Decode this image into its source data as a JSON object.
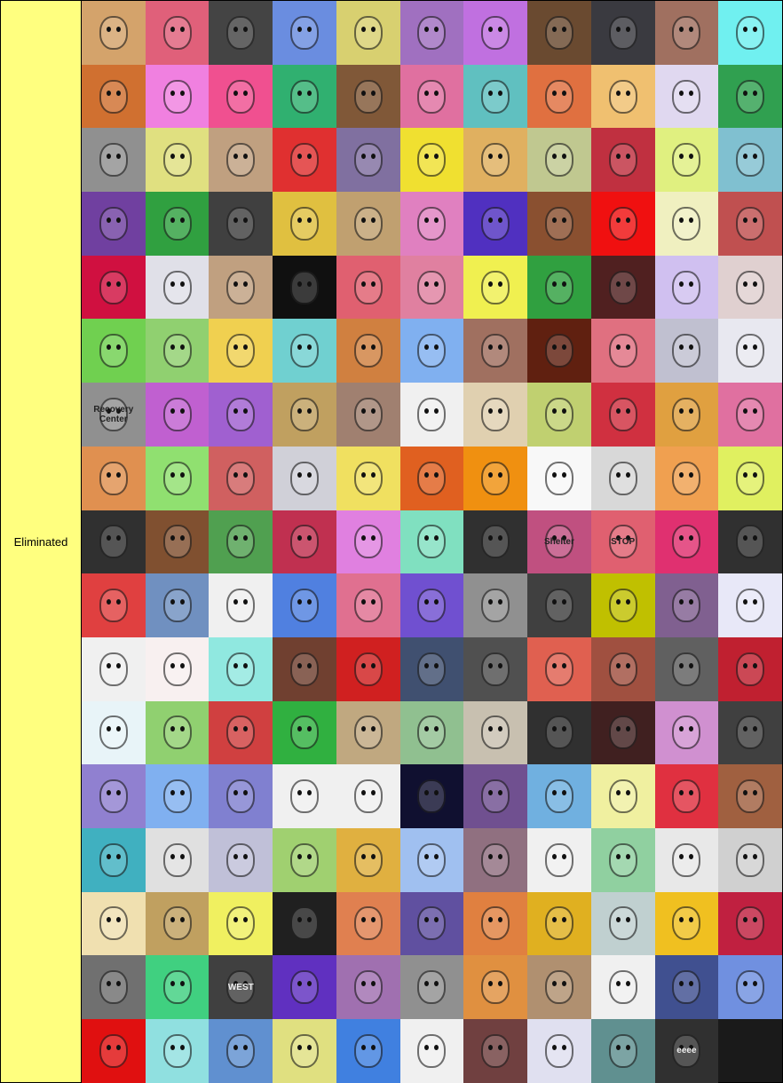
{
  "tier": {
    "label": "Eliminated",
    "color": "#ffff7f"
  },
  "items": [
    {
      "bg": "#d4a36b"
    },
    {
      "bg": "#e0607a"
    },
    {
      "bg": "#444444"
    },
    {
      "bg": "#6a8de0"
    },
    {
      "bg": "#d8d070"
    },
    {
      "bg": "#a070c0"
    },
    {
      "bg": "#c070e0"
    },
    {
      "bg": "#6a4a30"
    },
    {
      "bg": "#3a3a40"
    },
    {
      "bg": "#a07060"
    },
    {
      "bg": "#70f0f0"
    },
    {
      "bg": "#d07030"
    },
    {
      "bg": "#f080e0"
    },
    {
      "bg": "#f05090"
    },
    {
      "bg": "#30b070"
    },
    {
      "bg": "#805838"
    },
    {
      "bg": "#e070a0"
    },
    {
      "bg": "#60c0c0"
    },
    {
      "bg": "#e07040"
    },
    {
      "bg": "#f0c070"
    },
    {
      "bg": "#e0d8f0"
    },
    {
      "bg": "#30a050"
    },
    {
      "bg": "#909090"
    },
    {
      "bg": "#e0e080"
    },
    {
      "bg": "#c0a080"
    },
    {
      "bg": "#e03030"
    },
    {
      "bg": "#8070a0"
    },
    {
      "bg": "#f0e030"
    },
    {
      "bg": "#e0b060"
    },
    {
      "bg": "#c0c890"
    },
    {
      "bg": "#c03040"
    },
    {
      "bg": "#e0f080"
    },
    {
      "bg": "#80c0d0"
    },
    {
      "bg": "#7040a0"
    },
    {
      "bg": "#30a040"
    },
    {
      "bg": "#404040"
    },
    {
      "bg": "#e0c040"
    },
    {
      "bg": "#c0a070"
    },
    {
      "bg": "#e080c0"
    },
    {
      "bg": "#5030c0"
    },
    {
      "bg": "#8a5030"
    },
    {
      "bg": "#f01010"
    },
    {
      "bg": "#f0f0c0"
    },
    {
      "bg": "#c05050"
    },
    {
      "bg": "#d01040"
    },
    {
      "bg": "#e0e0e8"
    },
    {
      "bg": "#c0a080"
    },
    {
      "bg": "#101010"
    },
    {
      "bg": "#e06070"
    },
    {
      "bg": "#e080a0"
    },
    {
      "bg": "#f0f050"
    },
    {
      "bg": "#30a040"
    },
    {
      "bg": "#502020"
    },
    {
      "bg": "#d0c0f0"
    },
    {
      "bg": "#e0d0d0"
    },
    {
      "bg": "#70d050"
    },
    {
      "bg": "#90d070"
    },
    {
      "bg": "#f0d050"
    },
    {
      "bg": "#70d0d0"
    },
    {
      "bg": "#d08040"
    },
    {
      "bg": "#80b0f0"
    },
    {
      "bg": "#a07060"
    },
    {
      "bg": "#602010"
    },
    {
      "bg": "#e07080"
    },
    {
      "bg": "#c0c0d0"
    },
    {
      "bg": "#e8e8f0"
    },
    {
      "bg": "#909090",
      "text": "Recovery Center"
    },
    {
      "bg": "#c060d0"
    },
    {
      "bg": "#a060d0"
    },
    {
      "bg": "#c0a060"
    },
    {
      "bg": "#a08070"
    },
    {
      "bg": "#f0f0f0"
    },
    {
      "bg": "#e0d0b0"
    },
    {
      "bg": "#c0d070"
    },
    {
      "bg": "#d03040"
    },
    {
      "bg": "#e0a040"
    },
    {
      "bg": "#e070a0"
    },
    {
      "bg": "#e09050"
    },
    {
      "bg": "#90e070"
    },
    {
      "bg": "#d06060"
    },
    {
      "bg": "#d0d0d8"
    },
    {
      "bg": "#f0e060"
    },
    {
      "bg": "#e06020"
    },
    {
      "bg": "#f09010"
    },
    {
      "bg": "#f8f8f8"
    },
    {
      "bg": "#d8d8d8"
    },
    {
      "bg": "#f0a050"
    },
    {
      "bg": "#e0f060"
    },
    {
      "bg": "#303030"
    },
    {
      "bg": "#805030"
    },
    {
      "bg": "#50a050"
    },
    {
      "bg": "#c03050"
    },
    {
      "bg": "#e080e0"
    },
    {
      "bg": "#80e0c0"
    },
    {
      "bg": "#303030"
    },
    {
      "bg": "#c05080",
      "text": "Shelter"
    },
    {
      "bg": "#e06070",
      "text": "STOP"
    },
    {
      "bg": "#e03070"
    },
    {
      "bg": "#303030"
    },
    {
      "bg": "#e04040"
    },
    {
      "bg": "#7090c0"
    },
    {
      "bg": "#f0f0f0"
    },
    {
      "bg": "#5080e0"
    },
    {
      "bg": "#e07090"
    },
    {
      "bg": "#7050d0"
    },
    {
      "bg": "#909090"
    },
    {
      "bg": "#404040"
    },
    {
      "bg": "#c0c000"
    },
    {
      "bg": "#806090"
    },
    {
      "bg": "#e8e8f8"
    },
    {
      "bg": "#f0f0f0"
    },
    {
      "bg": "#f8f0f0"
    },
    {
      "bg": "#90e8e0"
    },
    {
      "bg": "#704030"
    },
    {
      "bg": "#d02020"
    },
    {
      "bg": "#405070"
    },
    {
      "bg": "#505050"
    },
    {
      "bg": "#e06050"
    },
    {
      "bg": "#a05040"
    },
    {
      "bg": "#606060"
    },
    {
      "bg": "#c02030"
    },
    {
      "bg": "#e8f4f8"
    },
    {
      "bg": "#90d070"
    },
    {
      "bg": "#d04040"
    },
    {
      "bg": "#30b040"
    },
    {
      "bg": "#c0a880"
    },
    {
      "bg": "#90c090"
    },
    {
      "bg": "#c8c0b0"
    },
    {
      "bg": "#303030"
    },
    {
      "bg": "#402020"
    },
    {
      "bg": "#d090d0"
    },
    {
      "bg": "#404040"
    },
    {
      "bg": "#9080d0"
    },
    {
      "bg": "#80b0f0"
    },
    {
      "bg": "#8080d0"
    },
    {
      "bg": "#f0f0f0"
    },
    {
      "bg": "#f0f0f0"
    },
    {
      "bg": "#101030"
    },
    {
      "bg": "#705090"
    },
    {
      "bg": "#70b0e0"
    },
    {
      "bg": "#f0f0a0"
    },
    {
      "bg": "#e03040"
    },
    {
      "bg": "#a06040"
    },
    {
      "bg": "#40b0c0"
    },
    {
      "bg": "#e0e0e0"
    },
    {
      "bg": "#c0c0d8"
    },
    {
      "bg": "#a0d070"
    },
    {
      "bg": "#e0b040"
    },
    {
      "bg": "#a0c0f0"
    },
    {
      "bg": "#907080"
    },
    {
      "bg": "#f0f0f0"
    },
    {
      "bg": "#90d0a0"
    },
    {
      "bg": "#e8e8e8"
    },
    {
      "bg": "#d0d0d0"
    },
    {
      "bg": "#f0e0b0"
    },
    {
      "bg": "#c0a060"
    },
    {
      "bg": "#f0f060"
    },
    {
      "bg": "#202020"
    },
    {
      "bg": "#e08050"
    },
    {
      "bg": "#6050a0"
    },
    {
      "bg": "#e08040"
    },
    {
      "bg": "#e0b020"
    },
    {
      "bg": "#c0d0d0"
    },
    {
      "bg": "#f0c020"
    },
    {
      "bg": "#c02040"
    },
    {
      "bg": "#707070"
    },
    {
      "bg": "#40d080"
    },
    {
      "bg": "#404040",
      "text": "WEST"
    },
    {
      "bg": "#6030c0"
    },
    {
      "bg": "#a070b0"
    },
    {
      "bg": "#909090"
    },
    {
      "bg": "#e09040"
    },
    {
      "bg": "#b09070"
    },
    {
      "bg": "#f0f0f0"
    },
    {
      "bg": "#405090"
    },
    {
      "bg": "#7090e0"
    },
    {
      "bg": "#e01010"
    },
    {
      "bg": "#90e0e0"
    },
    {
      "bg": "#6090d0"
    },
    {
      "bg": "#e0e080"
    },
    {
      "bg": "#4080e0"
    },
    {
      "bg": "#f0f0f0"
    },
    {
      "bg": "#704040"
    },
    {
      "bg": "#e0e0f0"
    },
    {
      "bg": "#609090"
    },
    {
      "bg": "#303030",
      "text": "eeee"
    }
  ]
}
